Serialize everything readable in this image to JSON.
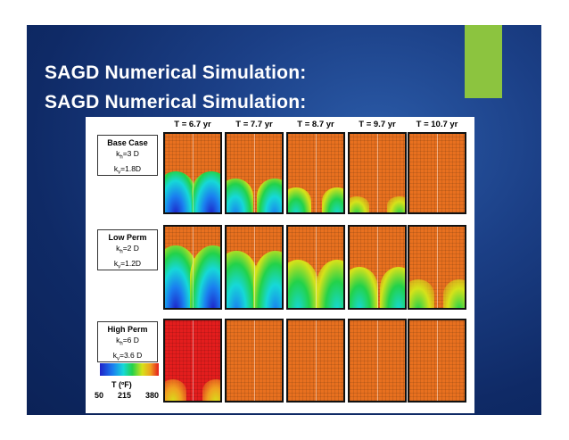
{
  "slide": {
    "title_line1": "SAGD Numerical Simulation:",
    "title_line2": "SAGD Numerical Simulation:",
    "colors": {
      "background": "#0f2a66",
      "accent": "#8cc43f",
      "title": "#ffffff"
    }
  },
  "figure": {
    "time_labels": [
      "T = 6.7 yr",
      "T = 7.7 yr",
      "T = 8.7 yr",
      "T = 9.7 yr",
      "T = 10.7 yr"
    ],
    "cases": [
      {
        "name": "Base Case",
        "kh": "k",
        "kh_sub": "h",
        "kh_val": "=3 D",
        "kv": "k",
        "kv_sub": "v",
        "kv_val": "=1.8D"
      },
      {
        "name": "Low Perm",
        "kh": "k",
        "kh_sub": "h",
        "kh_val": "=2 D",
        "kv": "k",
        "kv_sub": "v",
        "kv_val": "=1.2D"
      },
      {
        "name": "High Perm",
        "kh": "k",
        "kh_sub": "h",
        "kh_val": "=6 D",
        "kv": "k",
        "kv_sub": "v",
        "kv_val": "=3.6 D"
      }
    ],
    "colorbar": {
      "title": "T (ºF)",
      "ticks": [
        "50",
        "215",
        "380"
      ]
    }
  }
}
